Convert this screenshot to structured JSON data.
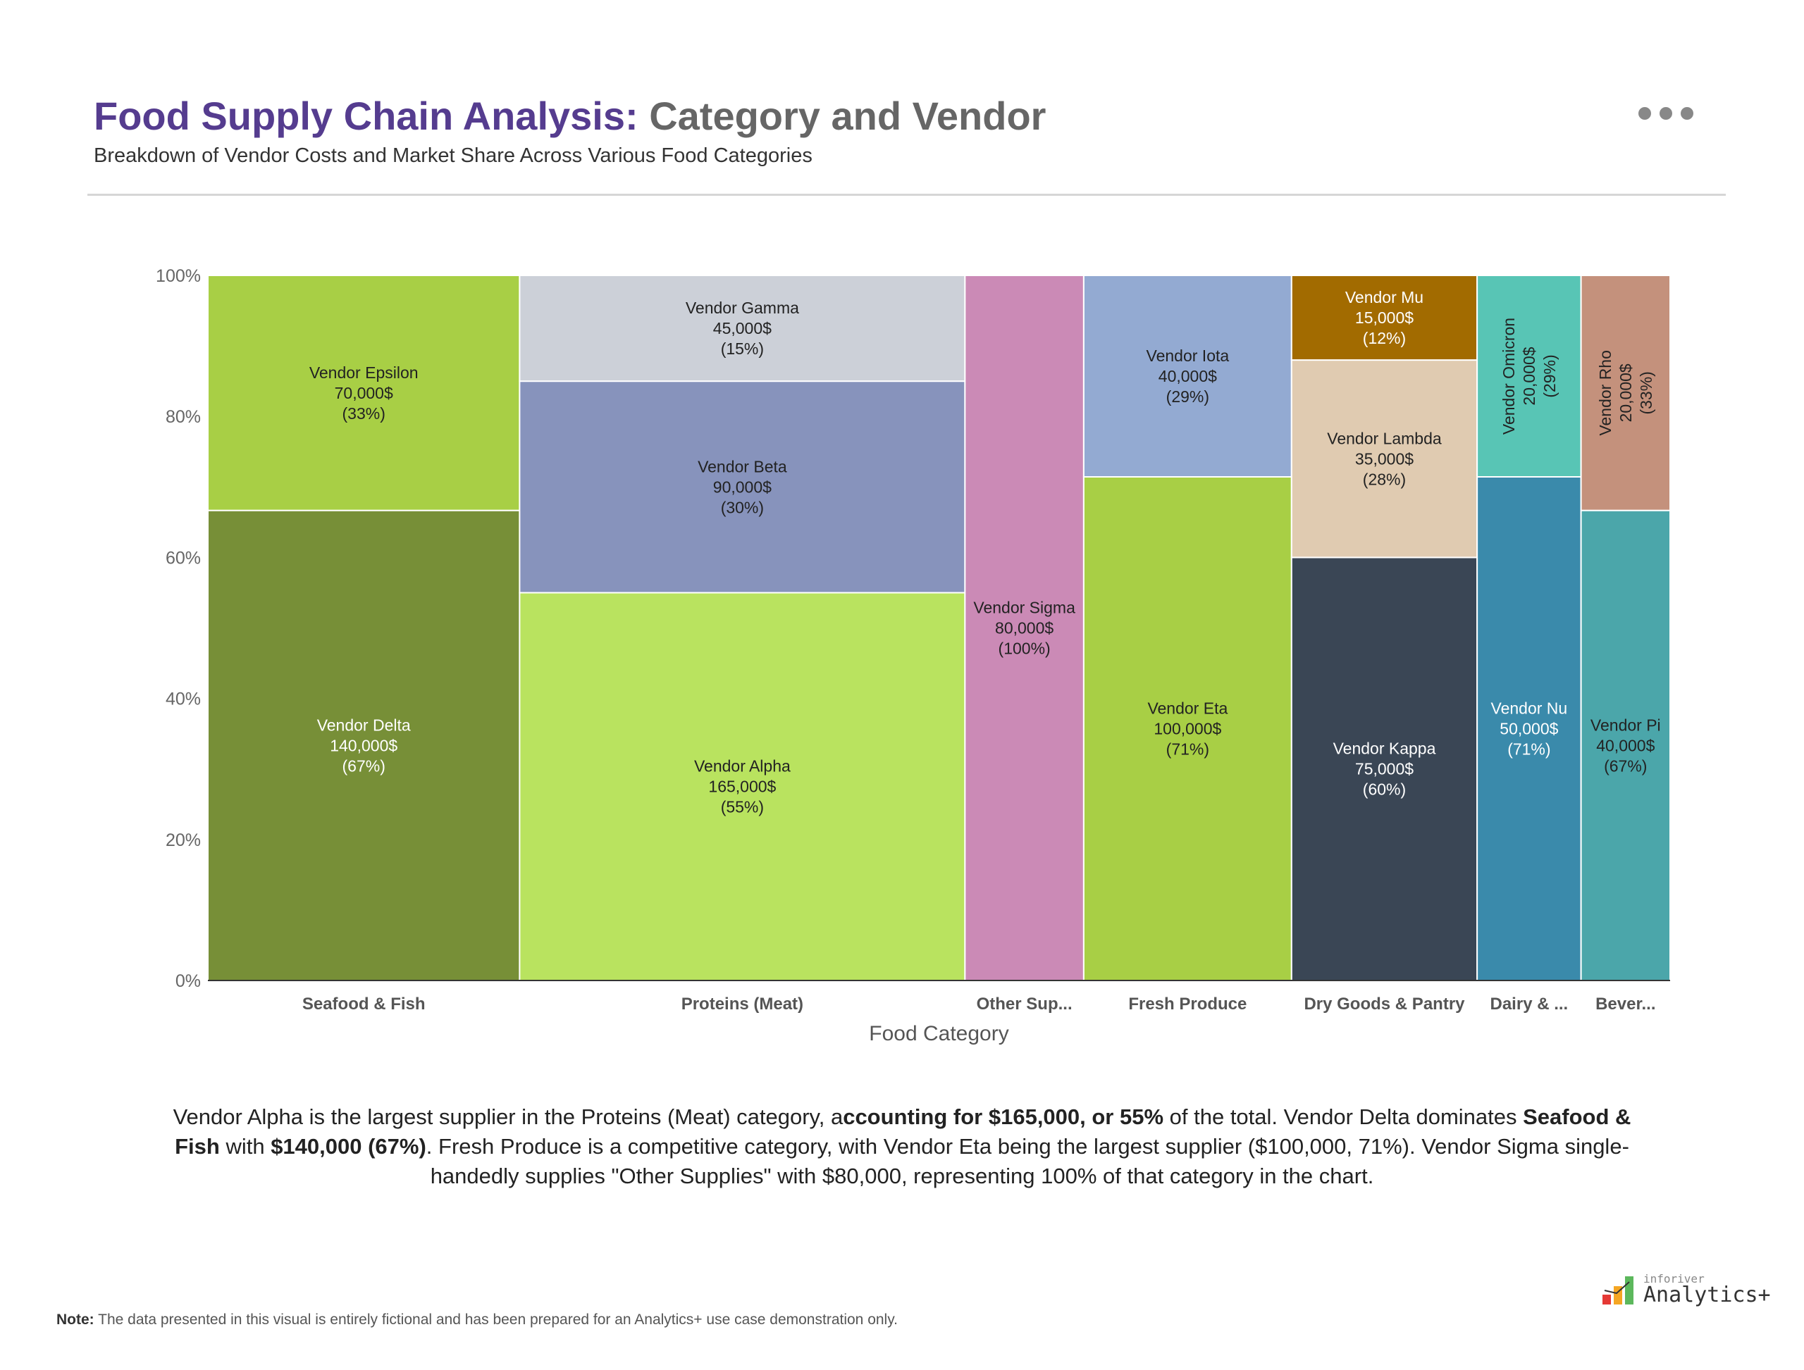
{
  "header": {
    "title_main": "Food Supply Chain Analysis:",
    "title_rest": " Category and Vendor",
    "subtitle": "Breakdown of Vendor Costs and Market Share Across Various Food Categories",
    "menu_icon": "more-horizontal-icon"
  },
  "chart_data": {
    "type": "marimekko",
    "xlabel": "Food Category",
    "ylabel": "",
    "ylim": [
      0,
      100
    ],
    "y_ticks": [
      "0%",
      "20%",
      "40%",
      "60%",
      "80%",
      "100%"
    ],
    "grid": false,
    "categories": [
      {
        "label": "Seafood & Fish",
        "segments": [
          {
            "name": "Vendor Delta",
            "value": 140000,
            "value_label": "140,000$",
            "pct_label": "(67%)",
            "color": "#778f37",
            "text_color": "#ffffff"
          },
          {
            "name": "Vendor Epsilon",
            "value": 70000,
            "value_label": "70,000$",
            "pct_label": "(33%)",
            "color": "#a8cf45",
            "text_color": "#222222"
          }
        ]
      },
      {
        "label": "Proteins (Meat)",
        "segments": [
          {
            "name": "Vendor Alpha",
            "value": 165000,
            "value_label": "165,000$",
            "pct_label": "(55%)",
            "color": "#b9e35f",
            "text_color": "#222222"
          },
          {
            "name": "Vendor Beta",
            "value": 90000,
            "value_label": "90,000$",
            "pct_label": "(30%)",
            "color": "#8793bc",
            "text_color": "#222222"
          },
          {
            "name": "Vendor Gamma",
            "value": 45000,
            "value_label": "45,000$",
            "pct_label": "(15%)",
            "color": "#ccd0d8",
            "text_color": "#222222"
          }
        ]
      },
      {
        "label": "Other Sup...",
        "segments": [
          {
            "name": "Vendor Sigma",
            "value": 80000,
            "value_label": "80,000$",
            "pct_label": "(100%)",
            "color": "#cb8ab6",
            "text_color": "#222222"
          }
        ]
      },
      {
        "label": "Fresh Produce",
        "segments": [
          {
            "name": "Vendor Eta",
            "value": 100000,
            "value_label": "100,000$",
            "pct_label": "(71%)",
            "color": "#a8cf45",
            "text_color": "#222222"
          },
          {
            "name": "Vendor Iota",
            "value": 40000,
            "value_label": "40,000$",
            "pct_label": "(29%)",
            "color": "#93aad2",
            "text_color": "#222222"
          }
        ]
      },
      {
        "label": "Dry Goods & Pantry",
        "segments": [
          {
            "name": "Vendor Kappa",
            "value": 75000,
            "value_label": "75,000$",
            "pct_label": "(60%)",
            "color": "#3a4655",
            "text_color": "#ffffff"
          },
          {
            "name": "Vendor Lambda",
            "value": 35000,
            "value_label": "35,000$",
            "pct_label": "(28%)",
            "color": "#e0cbb1",
            "text_color": "#222222"
          },
          {
            "name": "Vendor Mu",
            "value": 15000,
            "value_label": "15,000$",
            "pct_label": "(12%)",
            "color": "#a26b00",
            "text_color": "#ffffff"
          }
        ]
      },
      {
        "label": "Dairy & ...",
        "segments": [
          {
            "name": "Vendor Nu",
            "value": 50000,
            "value_label": "50,000$",
            "pct_label": "(71%)",
            "color": "#3a8aab",
            "text_color": "#ffffff"
          },
          {
            "name": "Vendor Omicron",
            "value": 20000,
            "value_label": "20,000$",
            "pct_label": "(29%)",
            "color": "#58c5b5",
            "text_color": "#222222",
            "rotated": true
          }
        ]
      },
      {
        "label": "Bever...",
        "segments": [
          {
            "name": "Vendor Pi",
            "value": 40000,
            "value_label": "40,000$",
            "pct_label": "(67%)",
            "color": "#4ba6aa",
            "text_color": "#222222"
          },
          {
            "name": "Vendor Rho",
            "value": 20000,
            "value_label": "20,000$",
            "pct_label": "(33%)",
            "color": "#c4917c",
            "text_color": "#222222",
            "rotated": true
          }
        ]
      }
    ]
  },
  "summary": [
    {
      "text": "Vendor Alpha is the largest supplier in the Proteins (Meat) category, a",
      "bold": false
    },
    {
      "text": "ccounting for $165,000, or 55%",
      "bold": true
    },
    {
      "text": " of the total. Vendor Delta dominates ",
      "bold": false
    },
    {
      "text": "Seafood & Fish",
      "bold": true
    },
    {
      "text": " with ",
      "bold": false
    },
    {
      "text": "$140,000 (67%)",
      "bold": true
    },
    {
      "text": ". Fresh Produce is a competitive category, with Vendor Eta being the largest supplier ($100,000, 71%). Vendor Sigma single-handedly supplies \"Other Supplies\" with $80,000, representing 100% of that category in the chart.",
      "bold": false
    }
  ],
  "footer": {
    "note_label": "Note:",
    "note_text": " The data presented in this visual is entirely fictional and has been prepared for an Analytics+ use case demonstration only.",
    "logo_small": "inforiver",
    "logo_big": "Analytics+"
  }
}
